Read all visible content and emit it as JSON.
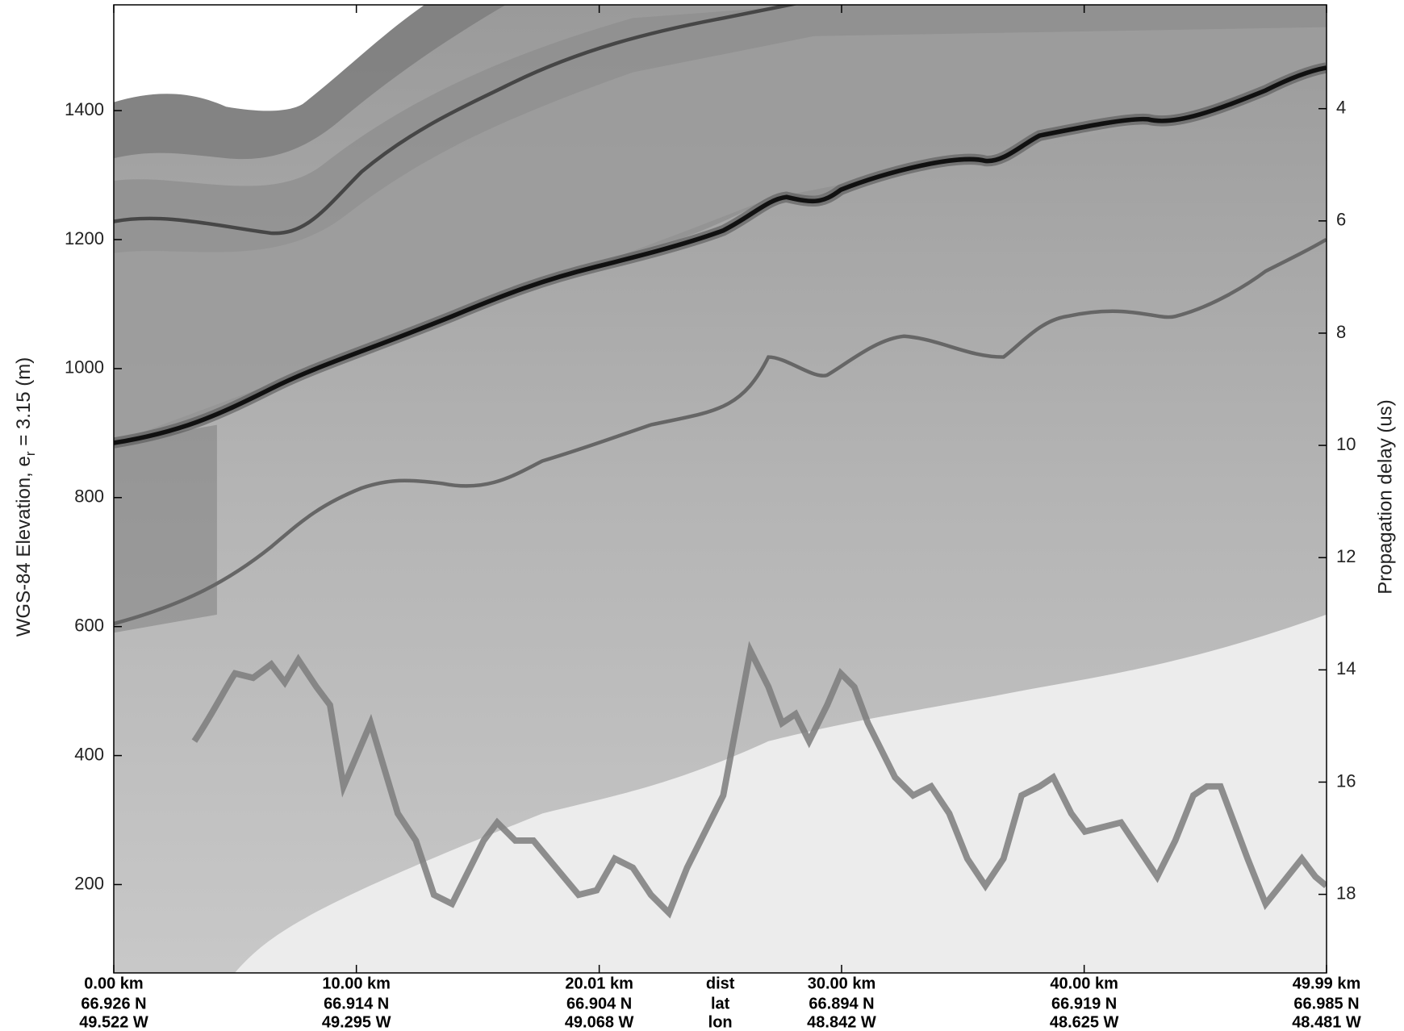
{
  "chart_data": {
    "type": "echogram",
    "ylabel": [
      "WGS-84 Elevation, e",
      "r",
      " = 3.15 (m)"
    ],
    "y2label": "Propagation delay (us)",
    "ylim": [
      63,
      1564
    ],
    "yticks": [
      200,
      400,
      600,
      800,
      1000,
      1200,
      1400
    ],
    "y2lim": [
      2.15,
      19.4
    ],
    "y2ticks": [
      4,
      6,
      8,
      10,
      12,
      14,
      16,
      18
    ],
    "xlim": [
      0,
      49.99
    ],
    "xticks": [
      {
        "value": 0,
        "label": "0.00 km"
      },
      {
        "value": 10,
        "label": "10.00 km"
      },
      {
        "value": 20.01,
        "label": "20.01 km"
      },
      {
        "value": 30,
        "label": "30.00 km"
      },
      {
        "value": 40,
        "label": "40.00 km"
      },
      {
        "value": 49.99,
        "label": "49.99 km"
      }
    ],
    "row_names": [
      "dist",
      "lat",
      "lon"
    ],
    "row_names_x": 25,
    "lat_labels": [
      "66.926 N",
      "66.914 N",
      "66.904 N",
      "66.894 N",
      "66.919 N",
      "66.985 N"
    ],
    "lon_labels": [
      "49.522 W",
      "49.295 W",
      "49.068 W",
      "48.842 W",
      "48.625 W",
      "48.481 W"
    ]
  }
}
